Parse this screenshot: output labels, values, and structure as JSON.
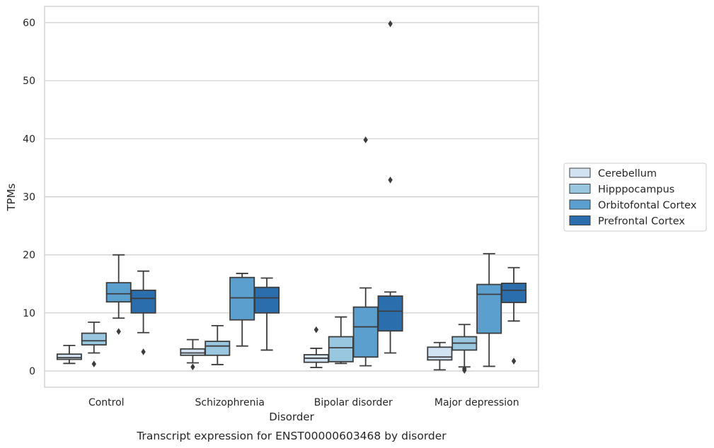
{
  "chart_data": {
    "type": "box",
    "xlabel": "Disorder",
    "ylabel": "TPMs",
    "caption": "Transcript expression for ENST00000603468 by disorder",
    "ylim": [
      -2.8,
      62.8
    ],
    "yticks": [
      0,
      10,
      20,
      30,
      40,
      50,
      60
    ],
    "grid": "horizontal",
    "legend_position": "right",
    "categories": [
      "Control",
      "Schizophrenia",
      "Bipolar disorder",
      "Major depression"
    ],
    "series": [
      {
        "name": "Cerebellum",
        "color": "#d1e2f2",
        "boxes": [
          {
            "whisker_low": 1.3,
            "q1": 2.0,
            "median": 2.3,
            "q3": 2.9,
            "whisker_high": 4.4,
            "outliers": []
          },
          {
            "whisker_low": 1.4,
            "q1": 2.7,
            "median": 3.1,
            "q3": 3.8,
            "whisker_high": 5.4,
            "outliers": [
              0.7
            ]
          },
          {
            "whisker_low": 0.6,
            "q1": 1.5,
            "median": 2.2,
            "q3": 2.8,
            "whisker_high": 3.9,
            "outliers": [
              7.1
            ]
          },
          {
            "whisker_low": 0.2,
            "q1": 1.9,
            "median": 2.4,
            "q3": 4.1,
            "whisker_high": 4.9,
            "outliers": []
          }
        ]
      },
      {
        "name": "Hipppocampus",
        "color": "#9ac7e0",
        "boxes": [
          {
            "whisker_low": 3.1,
            "q1": 4.5,
            "median": 5.2,
            "q3": 6.5,
            "whisker_high": 8.4,
            "outliers": [
              1.2
            ]
          },
          {
            "whisker_low": 1.1,
            "q1": 2.7,
            "median": 4.3,
            "q3": 5.1,
            "whisker_high": 7.8,
            "outliers": []
          },
          {
            "whisker_low": 1.3,
            "q1": 1.6,
            "median": 4.0,
            "q3": 5.9,
            "whisker_high": 9.3,
            "outliers": []
          },
          {
            "whisker_low": 0.7,
            "q1": 3.6,
            "median": 4.8,
            "q3": 5.9,
            "whisker_high": 8.0,
            "outliers": [
              0.1,
              0.4
            ]
          }
        ]
      },
      {
        "name": "Orbitofontal Cortex",
        "color": "#5b9fce",
        "boxes": [
          {
            "whisker_low": 9.1,
            "q1": 11.9,
            "median": 13.3,
            "q3": 15.2,
            "whisker_high": 20.0,
            "outliers": [
              6.8
            ]
          },
          {
            "whisker_low": 4.3,
            "q1": 8.8,
            "median": 12.6,
            "q3": 16.1,
            "whisker_high": 16.8,
            "outliers": []
          },
          {
            "whisker_low": 0.9,
            "q1": 2.4,
            "median": 7.6,
            "q3": 11.0,
            "whisker_high": 14.3,
            "outliers": [
              39.8
            ]
          },
          {
            "whisker_low": 0.8,
            "q1": 6.5,
            "median": 13.2,
            "q3": 14.9,
            "whisker_high": 20.2,
            "outliers": []
          }
        ]
      },
      {
        "name": "Prefrontal Cortex",
        "color": "#2b6ead",
        "boxes": [
          {
            "whisker_low": 6.6,
            "q1": 10.0,
            "median": 12.5,
            "q3": 13.9,
            "whisker_high": 17.2,
            "outliers": [
              3.3
            ]
          },
          {
            "whisker_low": 3.6,
            "q1": 10.0,
            "median": 12.6,
            "q3": 14.4,
            "whisker_high": 16.0,
            "outliers": []
          },
          {
            "whisker_low": 3.1,
            "q1": 6.9,
            "median": 10.3,
            "q3": 12.9,
            "whisker_high": 13.6,
            "outliers": [
              59.8,
              32.9
            ]
          },
          {
            "whisker_low": 8.6,
            "q1": 11.8,
            "median": 13.9,
            "q3": 15.1,
            "whisker_high": 17.8,
            "outliers": [
              1.7
            ]
          }
        ]
      }
    ]
  }
}
